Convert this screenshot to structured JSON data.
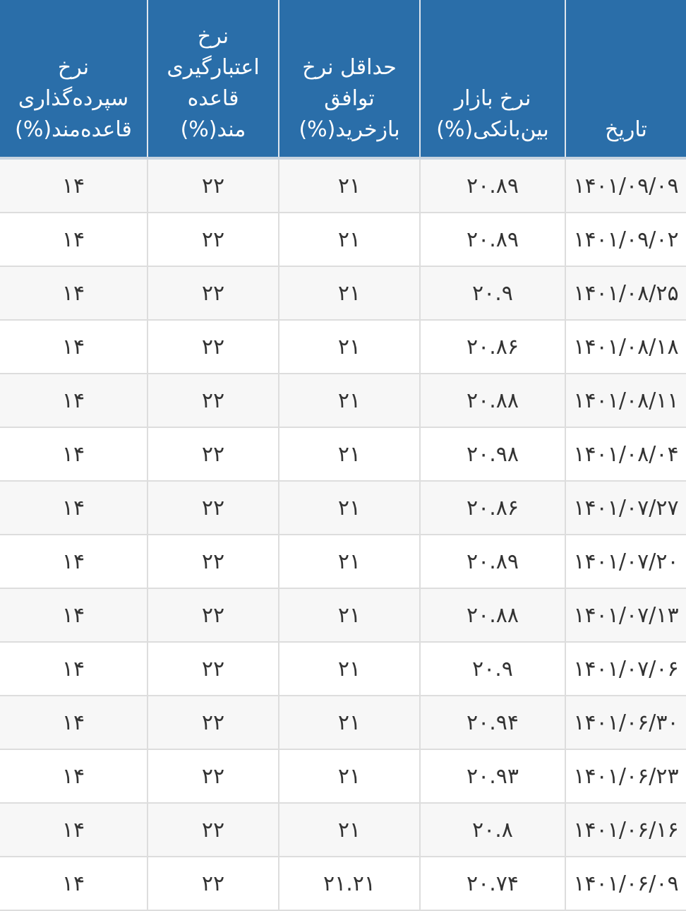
{
  "colors": {
    "header_bg": "#2a6ea9",
    "header_text": "#ffffff",
    "row_alt": "#f7f7f7"
  },
  "table": {
    "headers": [
      "تاریخ",
      "نرخ بازار بین‌بانکی(%)",
      "حداقل نرخ توافق بازخرید(%)",
      "نرخ اعتبارگیری قاعده مند(%)",
      "نرخ سپرده‌گذاری قاعده‌مند(%)"
    ],
    "rows": [
      [
        "۱۴۰۱/۰۹/۰۹",
        "۲۰.۸۹",
        "۲۱",
        "۲۲",
        "۱۴"
      ],
      [
        "۱۴۰۱/۰۹/۰۲",
        "۲۰.۸۹",
        "۲۱",
        "۲۲",
        "۱۴"
      ],
      [
        "۱۴۰۱/۰۸/۲۵",
        "۲۰.۹",
        "۲۱",
        "۲۲",
        "۱۴"
      ],
      [
        "۱۴۰۱/۰۸/۱۸",
        "۲۰.۸۶",
        "۲۱",
        "۲۲",
        "۱۴"
      ],
      [
        "۱۴۰۱/۰۸/۱۱",
        "۲۰.۸۸",
        "۲۱",
        "۲۲",
        "۱۴"
      ],
      [
        "۱۴۰۱/۰۸/۰۴",
        "۲۰.۹۸",
        "۲۱",
        "۲۲",
        "۱۴"
      ],
      [
        "۱۴۰۱/۰۷/۲۷",
        "۲۰.۸۶",
        "۲۱",
        "۲۲",
        "۱۴"
      ],
      [
        "۱۴۰۱/۰۷/۲۰",
        "۲۰.۸۹",
        "۲۱",
        "۲۲",
        "۱۴"
      ],
      [
        "۱۴۰۱/۰۷/۱۳",
        "۲۰.۸۸",
        "۲۱",
        "۲۲",
        "۱۴"
      ],
      [
        "۱۴۰۱/۰۷/۰۶",
        "۲۰.۹",
        "۲۱",
        "۲۲",
        "۱۴"
      ],
      [
        "۱۴۰۱/۰۶/۳۰",
        "۲۰.۹۴",
        "۲۱",
        "۲۲",
        "۱۴"
      ],
      [
        "۱۴۰۱/۰۶/۲۳",
        "۲۰.۹۳",
        "۲۱",
        "۲۲",
        "۱۴"
      ],
      [
        "۱۴۰۱/۰۶/۱۶",
        "۲۰.۸",
        "۲۱",
        "۲۲",
        "۱۴"
      ],
      [
        "۱۴۰۱/۰۶/۰۹",
        "۲۰.۷۴",
        "۲۱.۲۱",
        "۲۲",
        "۱۴"
      ]
    ]
  }
}
